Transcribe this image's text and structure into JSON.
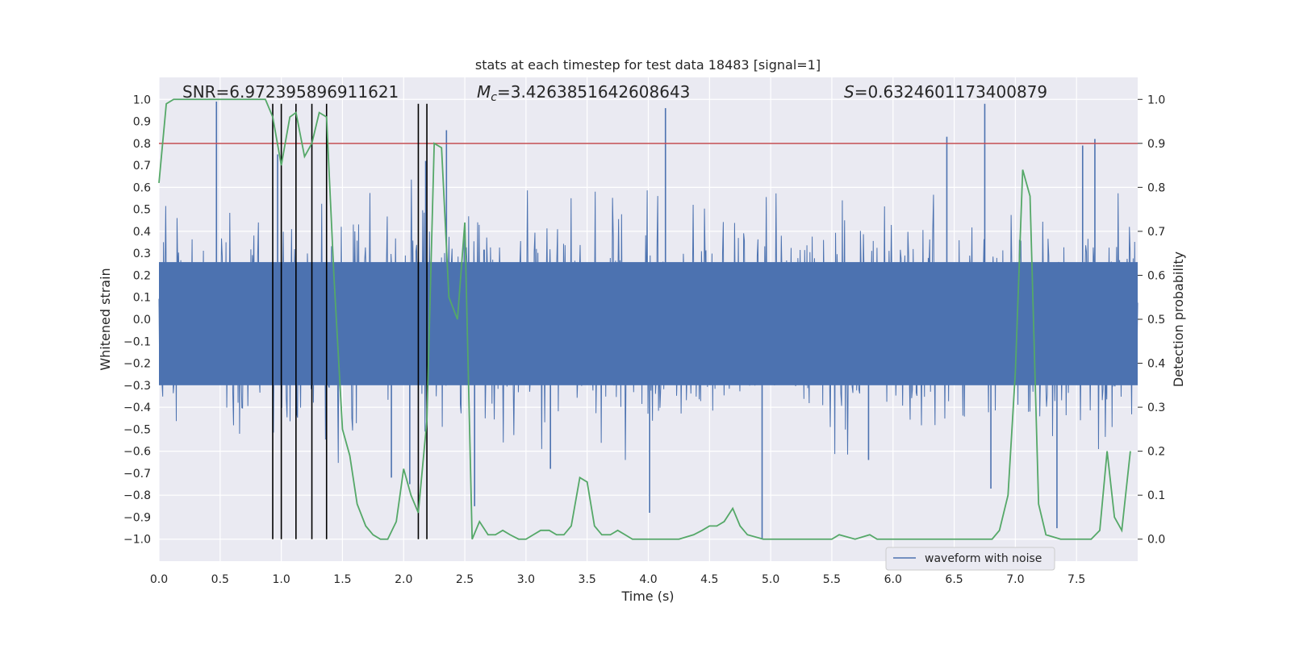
{
  "chart_data": {
    "type": "line",
    "title": "stats at each timestep for test data 18483 [signal=1]",
    "xlabel": "Time (s)",
    "ylabel_left": "Whitened strain",
    "ylabel_right": "Detection probability",
    "xlim": [
      0,
      8
    ],
    "ylim_left": [
      -1.1,
      1.1
    ],
    "ylim_right": [
      -0.05,
      1.05
    ],
    "grid": true,
    "legend_position": "lower-right",
    "x_ticks": [
      0.0,
      0.5,
      1.0,
      1.5,
      2.0,
      2.5,
      3.0,
      3.5,
      4.0,
      4.5,
      5.0,
      5.5,
      6.0,
      6.5,
      7.0,
      7.5
    ],
    "x_tick_labels": [
      "0.0",
      "0.5",
      "1.0",
      "1.5",
      "2.0",
      "2.5",
      "3.0",
      "3.5",
      "4.0",
      "4.5",
      "5.0",
      "5.5",
      "6.0",
      "6.5",
      "7.0",
      "7.5"
    ],
    "y_left_ticks": [
      1.0,
      0.9,
      0.8,
      0.7,
      0.6,
      0.5,
      0.4,
      0.3,
      0.2,
      0.1,
      0.0,
      -0.1,
      -0.2,
      -0.3,
      -0.4,
      -0.5,
      -0.6,
      -0.7,
      -0.8,
      -0.9,
      -1.0
    ],
    "y_left_tick_labels": [
      "1.0",
      "0.9",
      "0.8",
      "0.7",
      "0.6",
      "0.5",
      "0.4",
      "0.3",
      "0.2",
      "0.1",
      "0.0",
      "−0.1",
      "−0.2",
      "−0.3",
      "−0.4",
      "−0.5",
      "−0.6",
      "−0.7",
      "−0.8",
      "−0.9",
      "−1.0"
    ],
    "y_right_ticks": [
      1.0,
      0.9,
      0.8,
      0.7,
      0.6,
      0.5,
      0.4,
      0.3,
      0.2,
      0.1,
      0.0
    ],
    "y_right_tick_labels": [
      "1.0",
      "0.9",
      "0.8",
      "0.7",
      "0.6",
      "0.5",
      "0.4",
      "0.3",
      "0.2",
      "0.1",
      "0.0"
    ],
    "annotations": {
      "snr": "SNR=6.972395896911621",
      "mc_symbol": "M",
      "mc_sub": "c",
      "mc_value": "=3.4263851642608643",
      "s_symbol": "S",
      "s_value": "=0.6324601173400879"
    },
    "threshold": {
      "value": 0.9,
      "axis": "right",
      "color": "#c44e52"
    },
    "vertical_markers": [
      0.93,
      1.0,
      1.12,
      1.25,
      1.37,
      2.12,
      2.19
    ],
    "series": [
      {
        "name": "waveform with noise",
        "axis": "left",
        "color": "#4c72b0",
        "typical_amplitude": 0.42,
        "spikes": [
          {
            "x": 0.47,
            "y": 0.99
          },
          {
            "x": 0.97,
            "y": 0.75
          },
          {
            "x": 2.18,
            "y": 0.72
          },
          {
            "x": 2.35,
            "y": 0.86
          },
          {
            "x": 4.14,
            "y": 0.96
          },
          {
            "x": 6.44,
            "y": 0.83
          },
          {
            "x": 6.75,
            "y": 0.98
          },
          {
            "x": 7.55,
            "y": 0.79
          },
          {
            "x": 7.65,
            "y": 0.82
          },
          {
            "x": 2.05,
            "y": -0.75
          },
          {
            "x": 2.58,
            "y": -0.85
          },
          {
            "x": 4.01,
            "y": -0.88
          },
          {
            "x": 4.93,
            "y": -1.0
          },
          {
            "x": 7.34,
            "y": -0.95
          },
          {
            "x": 1.9,
            "y": -0.72
          },
          {
            "x": 3.2,
            "y": -0.68
          },
          {
            "x": 5.8,
            "y": -0.64
          },
          {
            "x": 6.8,
            "y": -0.77
          }
        ]
      },
      {
        "name": "",
        "axis": "right",
        "color": "#55a868",
        "x": [
          0.0,
          0.06,
          0.12,
          0.5,
          0.87,
          0.93,
          1.0,
          1.07,
          1.12,
          1.19,
          1.25,
          1.31,
          1.37,
          1.43,
          1.5,
          1.56,
          1.62,
          1.69,
          1.75,
          1.81,
          1.87,
          1.94,
          2.0,
          2.06,
          2.12,
          2.19,
          2.25,
          2.31,
          2.37,
          2.44,
          2.5,
          2.56,
          2.62,
          2.69,
          2.75,
          2.81,
          2.87,
          2.94,
          3.0,
          3.06,
          3.12,
          3.19,
          3.25,
          3.31,
          3.37,
          3.44,
          3.5,
          3.56,
          3.62,
          3.69,
          3.75,
          3.81,
          3.87,
          4.0,
          4.12,
          4.25,
          4.37,
          4.44,
          4.5,
          4.56,
          4.62,
          4.69,
          4.75,
          4.81,
          4.94,
          5.0,
          5.5,
          5.56,
          5.69,
          5.81,
          5.87,
          6.0,
          6.5,
          6.75,
          6.81,
          6.87,
          6.94,
          7.0,
          7.06,
          7.12,
          7.19,
          7.25,
          7.37,
          7.62,
          7.69,
          7.75,
          7.81,
          7.87,
          7.94
        ],
        "values": [
          0.81,
          0.99,
          1.0,
          1.0,
          1.0,
          0.96,
          0.85,
          0.96,
          0.97,
          0.87,
          0.9,
          0.97,
          0.96,
          0.6,
          0.25,
          0.19,
          0.08,
          0.03,
          0.01,
          0.0,
          0.0,
          0.04,
          0.16,
          0.1,
          0.06,
          0.27,
          0.9,
          0.89,
          0.55,
          0.5,
          0.72,
          0.0,
          0.04,
          0.01,
          0.01,
          0.02,
          0.01,
          0.0,
          0.0,
          0.01,
          0.02,
          0.02,
          0.01,
          0.01,
          0.03,
          0.14,
          0.13,
          0.03,
          0.01,
          0.01,
          0.02,
          0.01,
          0.0,
          0.0,
          0.0,
          0.0,
          0.01,
          0.02,
          0.03,
          0.03,
          0.04,
          0.07,
          0.03,
          0.01,
          0.0,
          0.0,
          0.0,
          0.01,
          0.0,
          0.01,
          0.0,
          0.0,
          0.0,
          0.0,
          0.0,
          0.02,
          0.1,
          0.38,
          0.84,
          0.78,
          0.08,
          0.01,
          0.0,
          0.0,
          0.02,
          0.2,
          0.05,
          0.02,
          0.2
        ]
      }
    ]
  }
}
